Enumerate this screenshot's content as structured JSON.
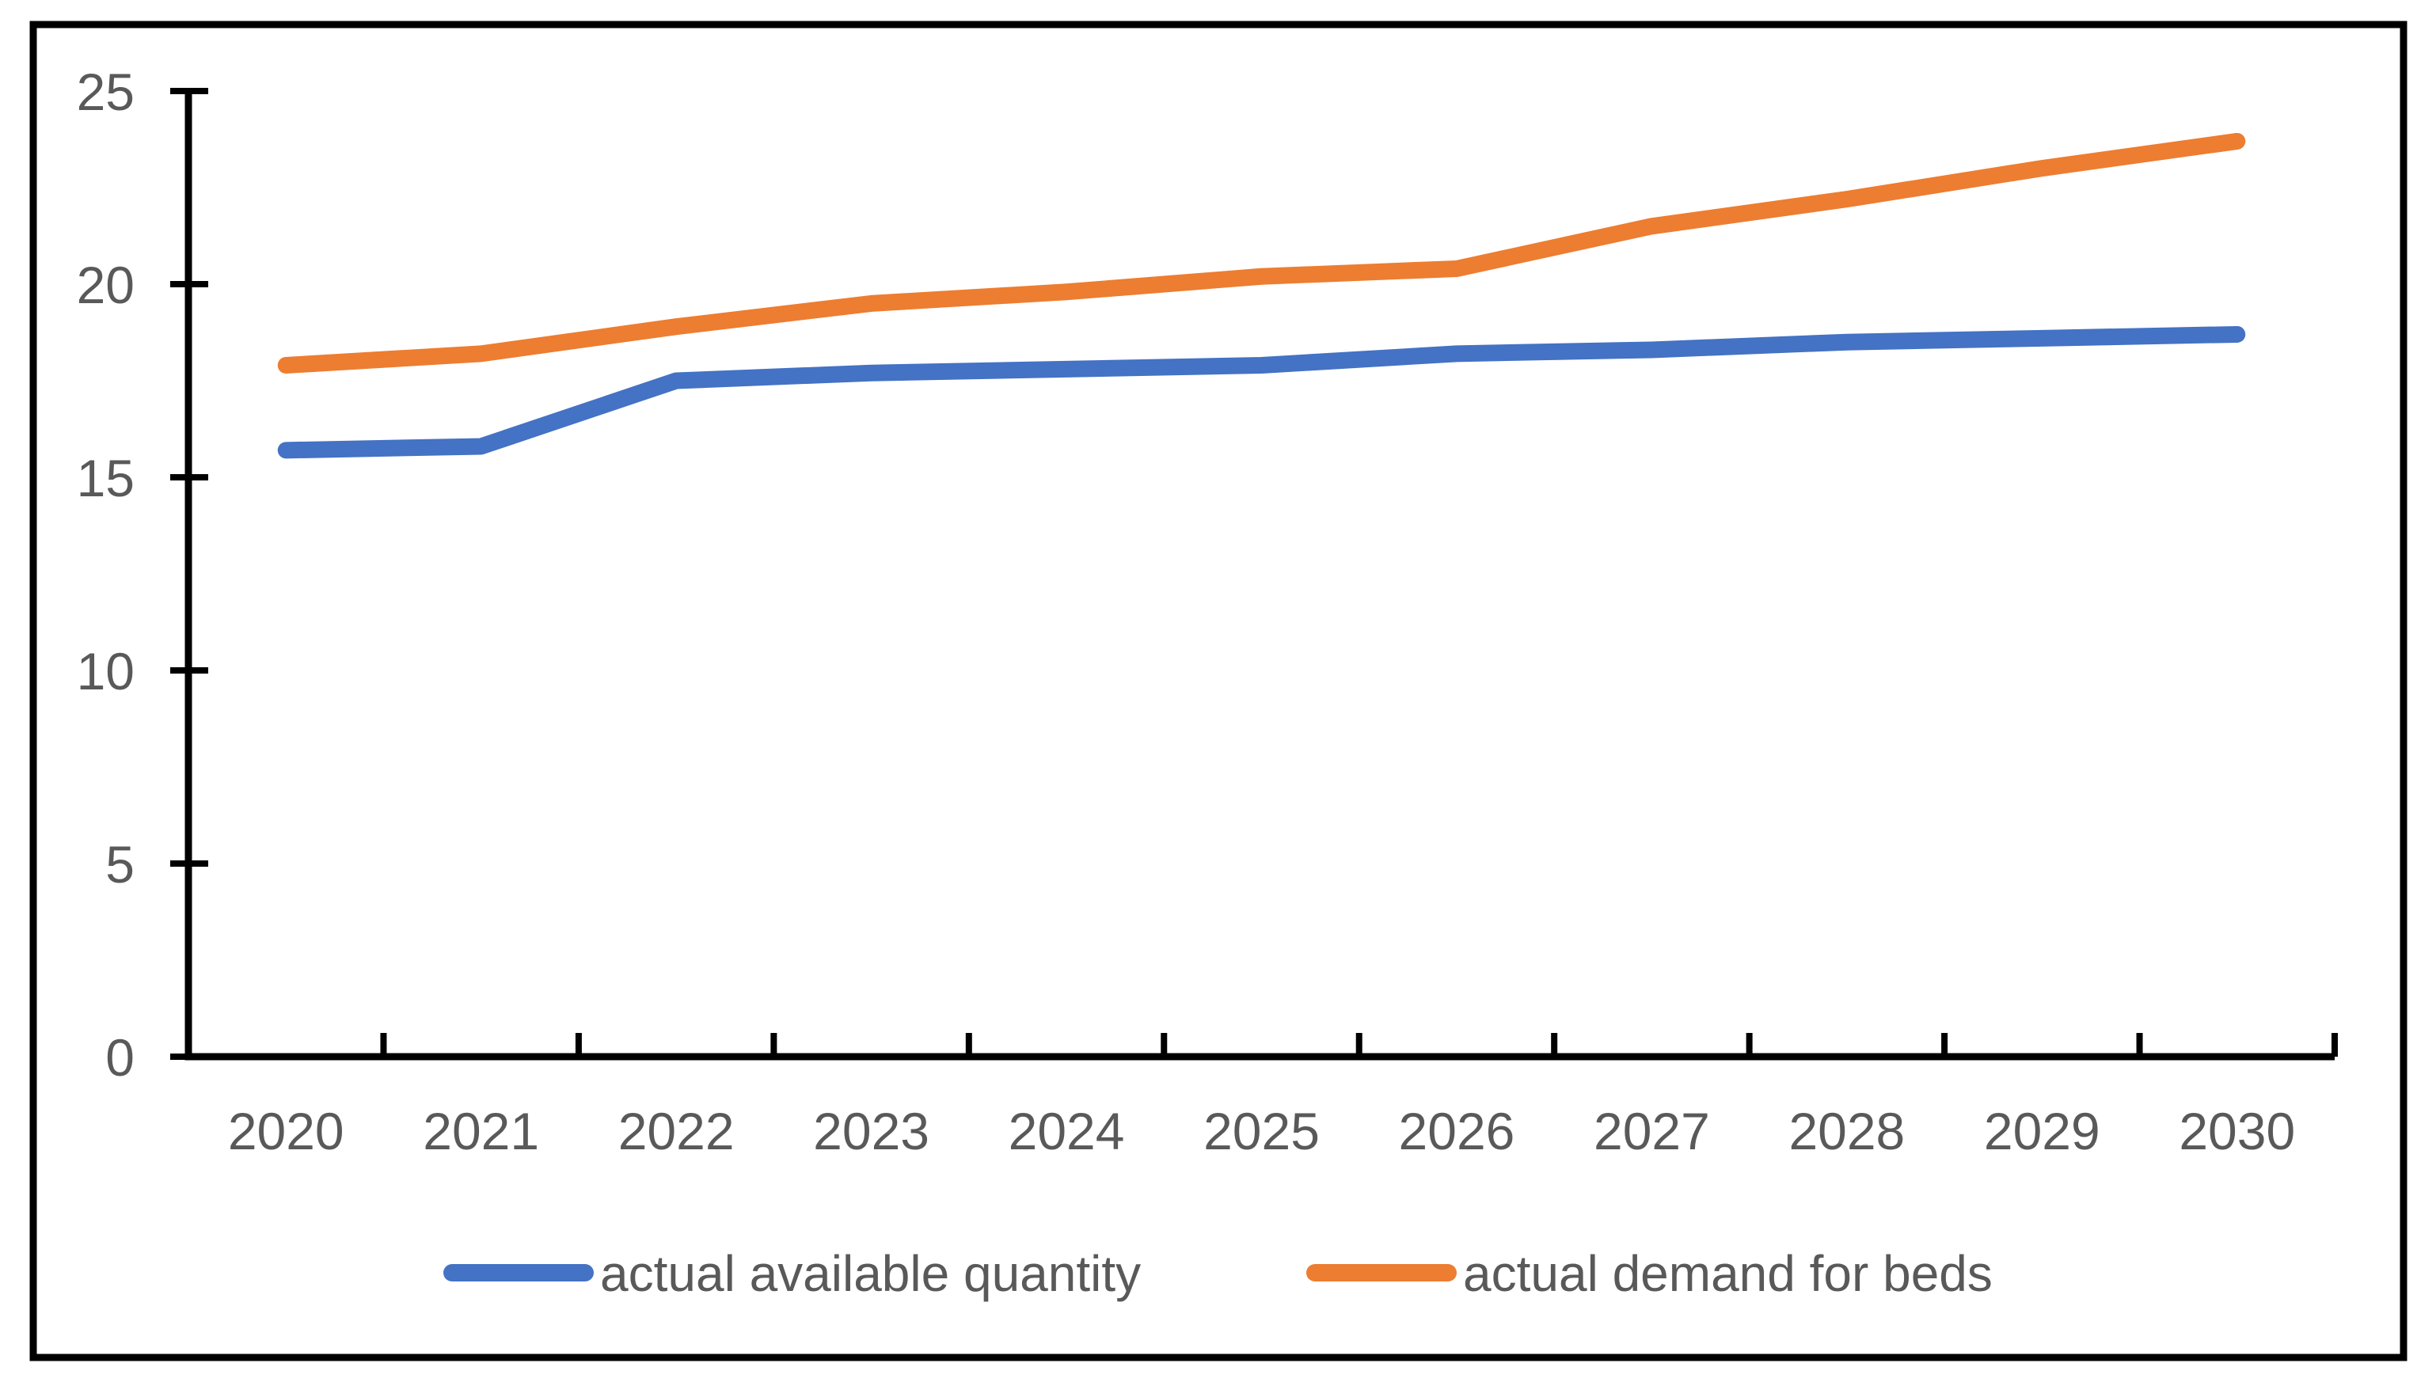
{
  "chart_data": {
    "type": "line",
    "title": "",
    "xlabel": "",
    "ylabel": "",
    "categories": [
      "2020",
      "2021",
      "2022",
      "2023",
      "2024",
      "2025",
      "2026",
      "2027",
      "2028",
      "2029",
      "2030"
    ],
    "series": [
      {
        "name": "actual available quantity",
        "color": "#4472C4",
        "values": [
          15.7,
          15.8,
          17.5,
          17.7,
          17.8,
          17.9,
          18.2,
          18.3,
          18.5,
          18.6,
          18.7
        ]
      },
      {
        "name": "actual demand for beds",
        "color": "#ED7D31",
        "values": [
          17.9,
          18.2,
          18.9,
          19.5,
          19.8,
          20.2,
          20.4,
          21.5,
          22.2,
          23.0,
          23.7
        ]
      }
    ],
    "ylim": [
      0,
      25
    ],
    "yticks": [
      0,
      5,
      10,
      15,
      20,
      25
    ],
    "grid": false,
    "legend_position": "bottom-center",
    "axis_color": "#000000",
    "label_color": "#595959",
    "border_color": "#000000",
    "background": "#FFFFFF"
  }
}
